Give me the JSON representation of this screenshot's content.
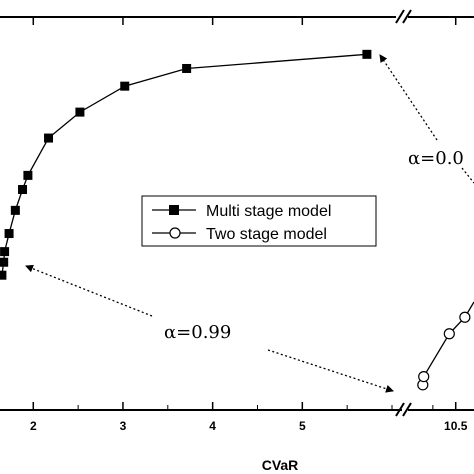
{
  "chart_data": {
    "type": "line",
    "xlabel": "CVaR",
    "ylabel": "",
    "title": "",
    "x_ticks_left": [
      "2",
      "3",
      "4",
      "5"
    ],
    "x_ticks_right": [
      "10.5"
    ],
    "xlim_left": [
      1.64,
      6.0
    ],
    "xlim_right": [
      10.0,
      10.7
    ],
    "ylim": [
      0,
      1
    ],
    "series": [
      {
        "name": "Multi stage model",
        "marker": "filled-square",
        "x": [
          1.65,
          1.67,
          1.68,
          1.73,
          1.8,
          1.88,
          1.94,
          2.17,
          2.52,
          3.02,
          3.71,
          5.72
        ],
        "y": [
          0.343,
          0.376,
          0.403,
          0.449,
          0.508,
          0.561,
          0.597,
          0.692,
          0.758,
          0.824,
          0.869,
          0.905
        ]
      },
      {
        "name": "Two stage model",
        "marker": "open-circle",
        "x": [
          10.14,
          10.15,
          10.43,
          10.6
        ],
        "y": [
          0.064,
          0.085,
          0.194,
          0.236
        ]
      }
    ],
    "annotations": [
      {
        "text": "α=0.99",
        "x": 2.8,
        "y": 0.245
      },
      {
        "text": "α=0.0",
        "x": 10.3,
        "y": 0.64
      }
    ],
    "legend": "center",
    "grid": false
  }
}
